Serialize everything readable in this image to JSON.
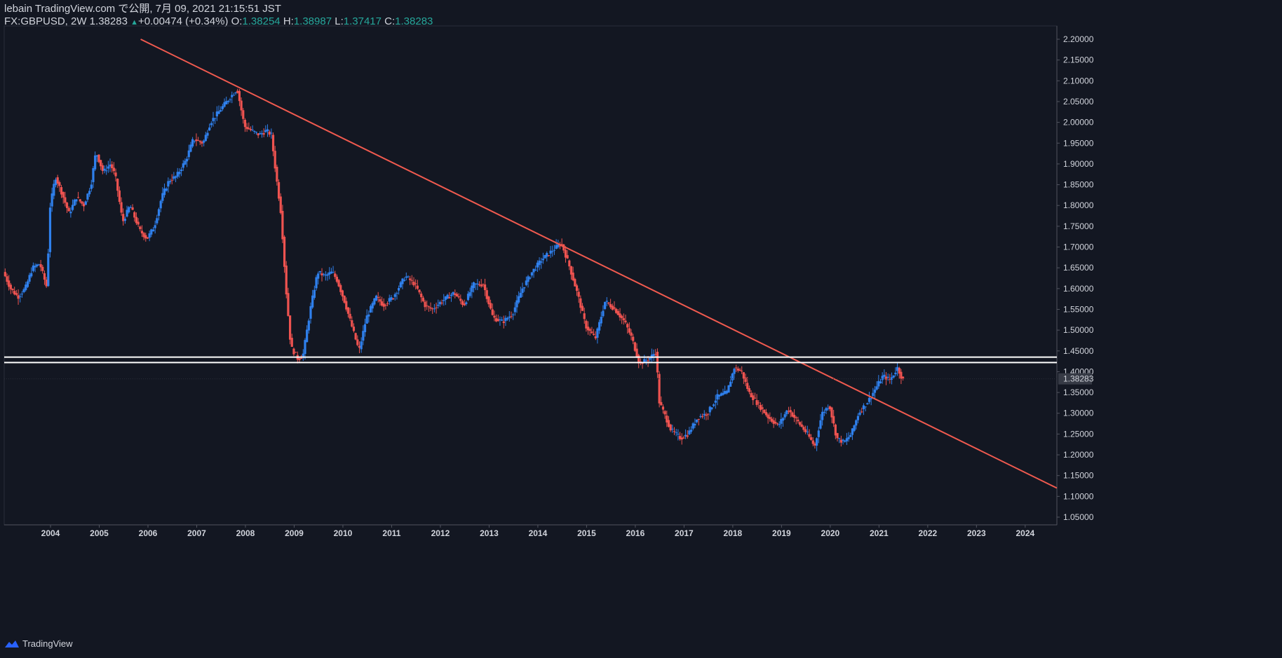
{
  "header": {
    "line1": "lebain TradingView.com で公開, 7月 09, 2021 21:15:51 JST",
    "symbol": "FX:GBPUSD, 2W 1.38283",
    "change": "+0.00474 (+0.34%)",
    "o_label": "O:",
    "o_val": "1.38254",
    "h_label": "H:",
    "h_val": "1.38987",
    "l_label": "L:",
    "l_val": "1.37417",
    "c_label": "C:",
    "c_val": "1.38283"
  },
  "footer": {
    "brand": "TradingView"
  },
  "colors": {
    "up": "#2f80ed",
    "down": "#ef5350",
    "bg": "#131722",
    "trend": "#f05a4f",
    "hline": "#ffffff",
    "grid": "#363a45"
  },
  "price_label": "1.38283",
  "chart_data": {
    "type": "candlestick",
    "x_range": [
      2003.05,
      2024.65
    ],
    "ylim": [
      1.05,
      2.2
    ],
    "y_ticks": [
      "1.05000",
      "1.10000",
      "1.15000",
      "1.20000",
      "1.25000",
      "1.30000",
      "1.35000",
      "1.40000",
      "1.45000",
      "1.50000",
      "1.55000",
      "1.60000",
      "1.65000",
      "1.70000",
      "1.75000",
      "1.80000",
      "1.85000",
      "1.90000",
      "1.95000",
      "2.00000",
      "2.05000",
      "2.10000",
      "2.15000",
      "2.20000"
    ],
    "x_ticks": [
      "2004",
      "2005",
      "2006",
      "2007",
      "2008",
      "2009",
      "2010",
      "2011",
      "2012",
      "2013",
      "2014",
      "2015",
      "2016",
      "2017",
      "2018",
      "2019",
      "2020",
      "2021",
      "2022",
      "2023",
      "2024"
    ],
    "close_path": [
      [
        2003.05,
        1.64
      ],
      [
        2003.2,
        1.6
      ],
      [
        2003.35,
        1.58
      ],
      [
        2003.5,
        1.6
      ],
      [
        2003.65,
        1.65
      ],
      [
        2003.8,
        1.66
      ],
      [
        2003.95,
        1.6
      ],
      [
        2004.0,
        1.79
      ],
      [
        2004.12,
        1.87
      ],
      [
        2004.25,
        1.83
      ],
      [
        2004.4,
        1.78
      ],
      [
        2004.55,
        1.82
      ],
      [
        2004.7,
        1.8
      ],
      [
        2004.85,
        1.85
      ],
      [
        2004.95,
        1.93
      ],
      [
        2005.1,
        1.88
      ],
      [
        2005.25,
        1.9
      ],
      [
        2005.35,
        1.87
      ],
      [
        2005.5,
        1.76
      ],
      [
        2005.65,
        1.8
      ],
      [
        2005.85,
        1.74
      ],
      [
        2006.0,
        1.72
      ],
      [
        2006.15,
        1.75
      ],
      [
        2006.3,
        1.82
      ],
      [
        2006.45,
        1.86
      ],
      [
        2006.6,
        1.87
      ],
      [
        2006.8,
        1.91
      ],
      [
        2006.95,
        1.96
      ],
      [
        2007.15,
        1.95
      ],
      [
        2007.3,
        2.0
      ],
      [
        2007.5,
        2.03
      ],
      [
        2007.7,
        2.06
      ],
      [
        2007.85,
        2.08
      ],
      [
        2008.0,
        1.99
      ],
      [
        2008.15,
        1.98
      ],
      [
        2008.3,
        1.97
      ],
      [
        2008.45,
        1.98
      ],
      [
        2008.55,
        1.97
      ],
      [
        2008.65,
        1.87
      ],
      [
        2008.75,
        1.78
      ],
      [
        2008.85,
        1.6
      ],
      [
        2008.95,
        1.46
      ],
      [
        2009.1,
        1.43
      ],
      [
        2009.2,
        1.44
      ],
      [
        2009.35,
        1.55
      ],
      [
        2009.5,
        1.64
      ],
      [
        2009.65,
        1.63
      ],
      [
        2009.8,
        1.64
      ],
      [
        2009.9,
        1.62
      ],
      [
        2010.05,
        1.57
      ],
      [
        2010.2,
        1.51
      ],
      [
        2010.35,
        1.45
      ],
      [
        2010.5,
        1.53
      ],
      [
        2010.7,
        1.58
      ],
      [
        2010.85,
        1.56
      ],
      [
        2011.05,
        1.58
      ],
      [
        2011.3,
        1.63
      ],
      [
        2011.5,
        1.61
      ],
      [
        2011.7,
        1.56
      ],
      [
        2011.85,
        1.55
      ],
      [
        2012.05,
        1.57
      ],
      [
        2012.3,
        1.59
      ],
      [
        2012.5,
        1.56
      ],
      [
        2012.7,
        1.61
      ],
      [
        2012.9,
        1.61
      ],
      [
        2013.1,
        1.53
      ],
      [
        2013.3,
        1.52
      ],
      [
        2013.5,
        1.54
      ],
      [
        2013.7,
        1.6
      ],
      [
        2013.9,
        1.64
      ],
      [
        2014.1,
        1.67
      ],
      [
        2014.3,
        1.69
      ],
      [
        2014.5,
        1.71
      ],
      [
        2014.65,
        1.66
      ],
      [
        2014.85,
        1.58
      ],
      [
        2015.0,
        1.51
      ],
      [
        2015.2,
        1.48
      ],
      [
        2015.4,
        1.57
      ],
      [
        2015.6,
        1.55
      ],
      [
        2015.8,
        1.52
      ],
      [
        2015.95,
        1.48
      ],
      [
        2016.1,
        1.42
      ],
      [
        2016.3,
        1.43
      ],
      [
        2016.45,
        1.45
      ],
      [
        2016.5,
        1.33
      ],
      [
        2016.75,
        1.26
      ],
      [
        2016.95,
        1.24
      ],
      [
        2017.1,
        1.25
      ],
      [
        2017.3,
        1.29
      ],
      [
        2017.5,
        1.3
      ],
      [
        2017.7,
        1.34
      ],
      [
        2017.9,
        1.35
      ],
      [
        2018.05,
        1.41
      ],
      [
        2018.2,
        1.4
      ],
      [
        2018.35,
        1.35
      ],
      [
        2018.55,
        1.32
      ],
      [
        2018.75,
        1.29
      ],
      [
        2018.95,
        1.27
      ],
      [
        2019.15,
        1.31
      ],
      [
        2019.35,
        1.28
      ],
      [
        2019.55,
        1.25
      ],
      [
        2019.7,
        1.22
      ],
      [
        2019.85,
        1.3
      ],
      [
        2020.0,
        1.32
      ],
      [
        2020.15,
        1.24
      ],
      [
        2020.3,
        1.23
      ],
      [
        2020.45,
        1.25
      ],
      [
        2020.6,
        1.3
      ],
      [
        2020.8,
        1.33
      ],
      [
        2020.95,
        1.36
      ],
      [
        2021.1,
        1.39
      ],
      [
        2021.25,
        1.38
      ],
      [
        2021.4,
        1.41
      ],
      [
        2021.5,
        1.38
      ]
    ],
    "trendline": [
      [
        2005.85,
        2.2
      ],
      [
        2024.65,
        1.12
      ]
    ],
    "hlines": [
      1.435,
      1.422
    ]
  }
}
